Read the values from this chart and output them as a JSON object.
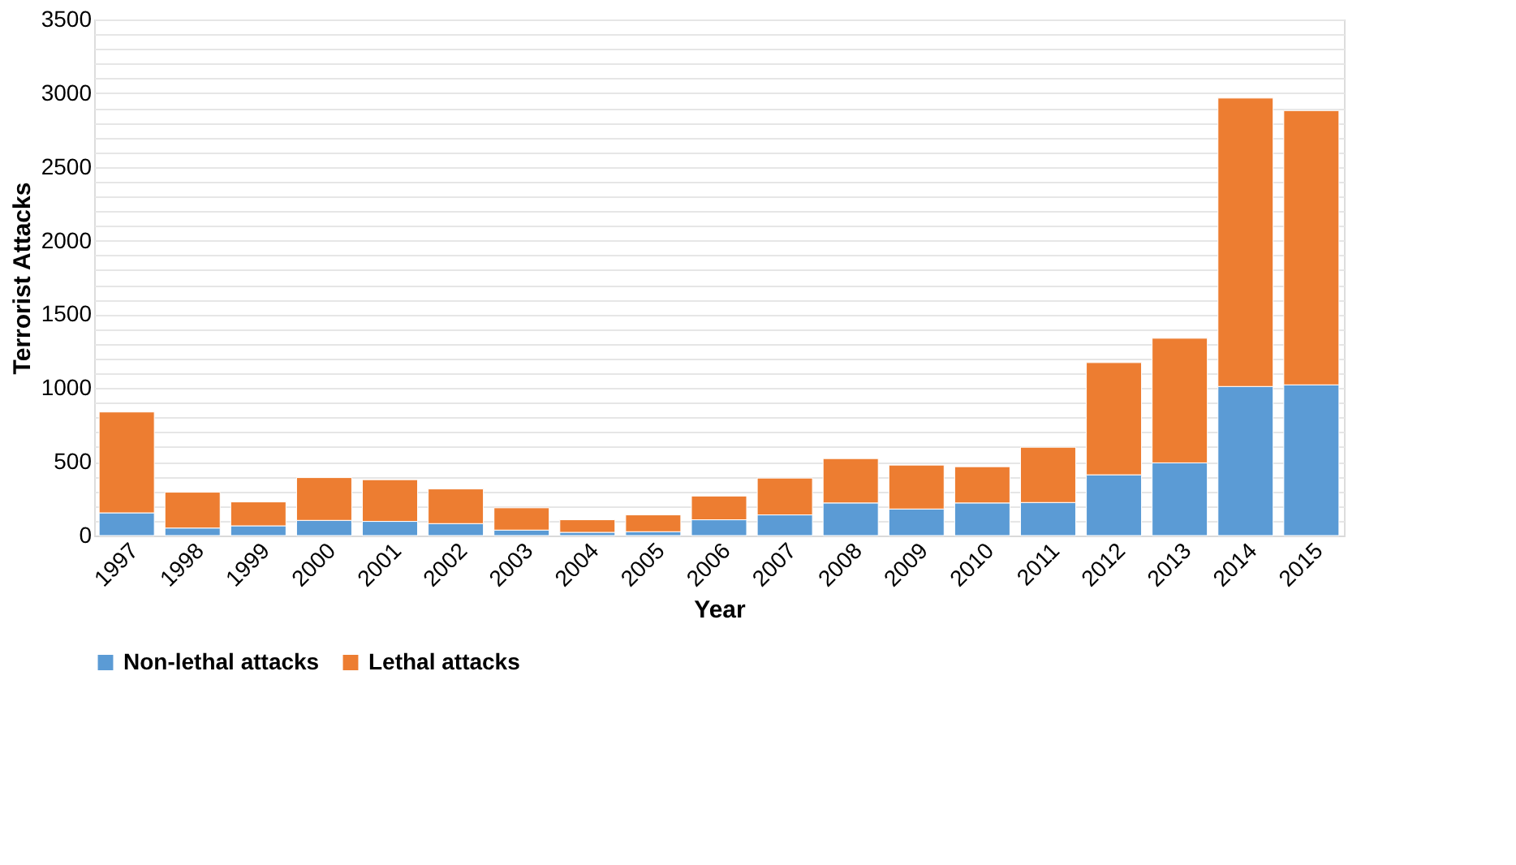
{
  "chart_data": {
    "type": "bar",
    "stacked": true,
    "xlabel": "Year",
    "ylabel": "Terrorist Attacks",
    "categories": [
      "1997",
      "1998",
      "1999",
      "2000",
      "2001",
      "2002",
      "2003",
      "2004",
      "2005",
      "2006",
      "2007",
      "2008",
      "2009",
      "2010",
      "2011",
      "2012",
      "2013",
      "2014",
      "2015"
    ],
    "series": [
      {
        "name": "Non-lethal attacks",
        "color": "#5b9bd5",
        "values": [
          154,
          51,
          66,
          103,
          96,
          81,
          37,
          22,
          26,
          107,
          140,
          221,
          180,
          221,
          224,
          412,
          493,
          1011,
          1022
        ]
      },
      {
        "name": "Lethal attacks",
        "color": "#ed7d31",
        "values": [
          684,
          243,
          162,
          290,
          283,
          235,
          151,
          85,
          114,
          161,
          250,
          301,
          298,
          246,
          375,
          761,
          845,
          1956,
          1860
        ]
      }
    ],
    "ylim": [
      0,
      3500
    ],
    "yticks": [
      0,
      {
        "value": 100,
        "label": null
      },
      {
        "value": 200,
        "label": null
      },
      {
        "value": 300,
        "label": null
      },
      {
        "value": 400,
        "label": null
      },
      500,
      {
        "value": 600,
        "label": null
      },
      {
        "value": 700,
        "label": null
      },
      {
        "value": 800,
        "label": null
      },
      {
        "value": 900,
        "label": null
      },
      1000,
      {
        "value": 1100,
        "label": null
      },
      {
        "value": 1200,
        "label": null
      },
      {
        "value": 1300,
        "label": null
      },
      {
        "value": 1400,
        "label": null
      },
      1500,
      {
        "value": 1600,
        "label": null
      },
      {
        "value": 1700,
        "label": null
      },
      {
        "value": 1800,
        "label": null
      },
      {
        "value": 1900,
        "label": null
      },
      2000,
      {
        "value": 2100,
        "label": null
      },
      {
        "value": 2200,
        "label": null
      },
      {
        "value": 2300,
        "label": null
      },
      {
        "value": 2400,
        "label": null
      },
      2500,
      {
        "value": 2600,
        "label": null
      },
      {
        "value": 2700,
        "label": null
      },
      {
        "value": 2800,
        "label": null
      },
      {
        "value": 2900,
        "label": null
      },
      3000,
      {
        "value": 3100,
        "label": null
      },
      {
        "value": 3200,
        "label": null
      },
      {
        "value": 3300,
        "label": null
      },
      {
        "value": 3400,
        "label": null
      },
      3500
    ],
    "grid": "y",
    "legend": "bottom"
  }
}
